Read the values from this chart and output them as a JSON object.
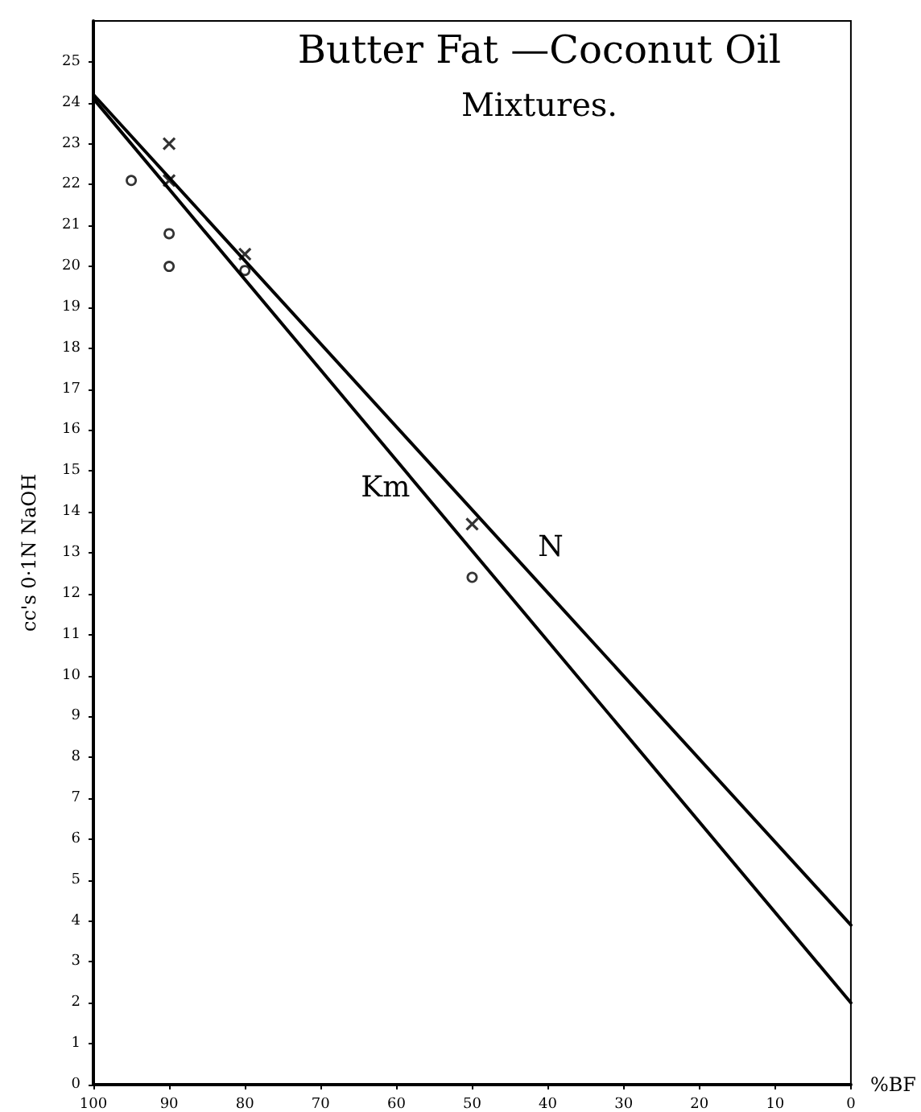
{
  "chart_data": {
    "type": "line",
    "title": "Butter Fat —Coconut Oil",
    "subtitle": "Mixtures.",
    "xlabel": "%BF",
    "ylabel": "cc's 0·1N NaOH",
    "xlim": [
      100,
      0
    ],
    "xticks": [
      100,
      90,
      80,
      70,
      60,
      50,
      40,
      30,
      20,
      10,
      0
    ],
    "ylim": [
      0,
      26
    ],
    "yticks": [
      0,
      1,
      2,
      3,
      4,
      5,
      6,
      7,
      8,
      9,
      10,
      11,
      12,
      13,
      14,
      15,
      16,
      17,
      18,
      19,
      20,
      21,
      22,
      23,
      24,
      25
    ],
    "grid": false,
    "legend": false,
    "series": [
      {
        "name": "N",
        "color": "#000000",
        "x": [
          100,
          0
        ],
        "values": [
          24.2,
          3.9
        ],
        "marker": "none",
        "line_style": "solid"
      },
      {
        "name": "Km",
        "color": "#000000",
        "x": [
          100,
          0
        ],
        "values": [
          24.1,
          2.0
        ],
        "marker": "none",
        "line_style": "solid"
      },
      {
        "type": "scatter",
        "color": "#000000",
        "marker": "cross",
        "x": [
          90,
          90,
          80,
          50
        ],
        "values": [
          23.0,
          22.1,
          20.3,
          13.7
        ]
      },
      {
        "type": "scatter",
        "color": "#000000",
        "marker": "circle",
        "x": [
          95,
          90,
          90,
          80,
          50
        ],
        "values": [
          22.1,
          20.8,
          20.0,
          19.9,
          12.4
        ]
      }
    ]
  }
}
